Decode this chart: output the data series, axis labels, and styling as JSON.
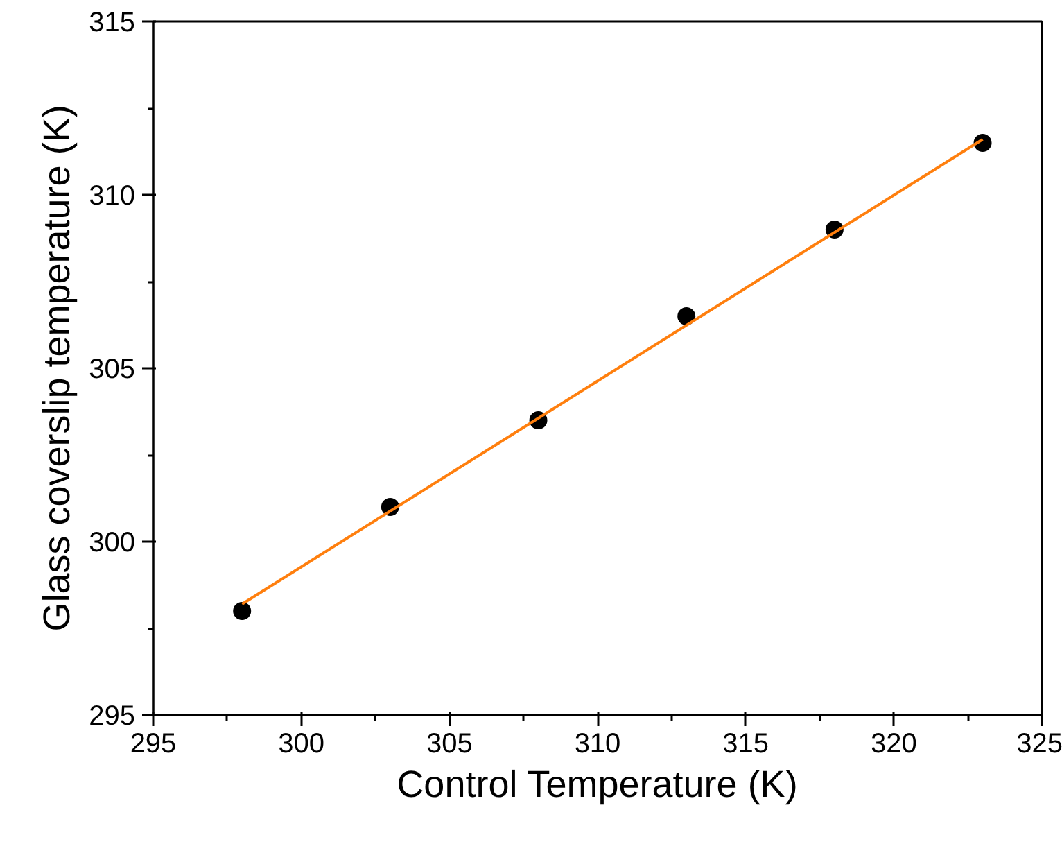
{
  "chart_data": {
    "type": "scatter",
    "xlabel": "Control Temperature (K)",
    "ylabel": "Glass coverslip temperature (K)",
    "xlim": [
      295,
      325
    ],
    "ylim": [
      295,
      315
    ],
    "xticks": [
      295,
      300,
      305,
      310,
      315,
      320,
      325
    ],
    "yticks": [
      295,
      300,
      305,
      310,
      315
    ],
    "grid": false,
    "marker": "circle",
    "series": [
      {
        "color": "#000000",
        "x": [
          298,
          303,
          308,
          313,
          318,
          323
        ],
        "values": [
          298,
          301,
          303.5,
          306.5,
          309,
          311.5
        ]
      },
      {
        "type": "line",
        "color": "#ff7f0e",
        "x": [
          298,
          323
        ],
        "values": [
          298.2,
          311.6
        ],
        "line_style": "solid",
        "marker": "none"
      }
    ]
  }
}
